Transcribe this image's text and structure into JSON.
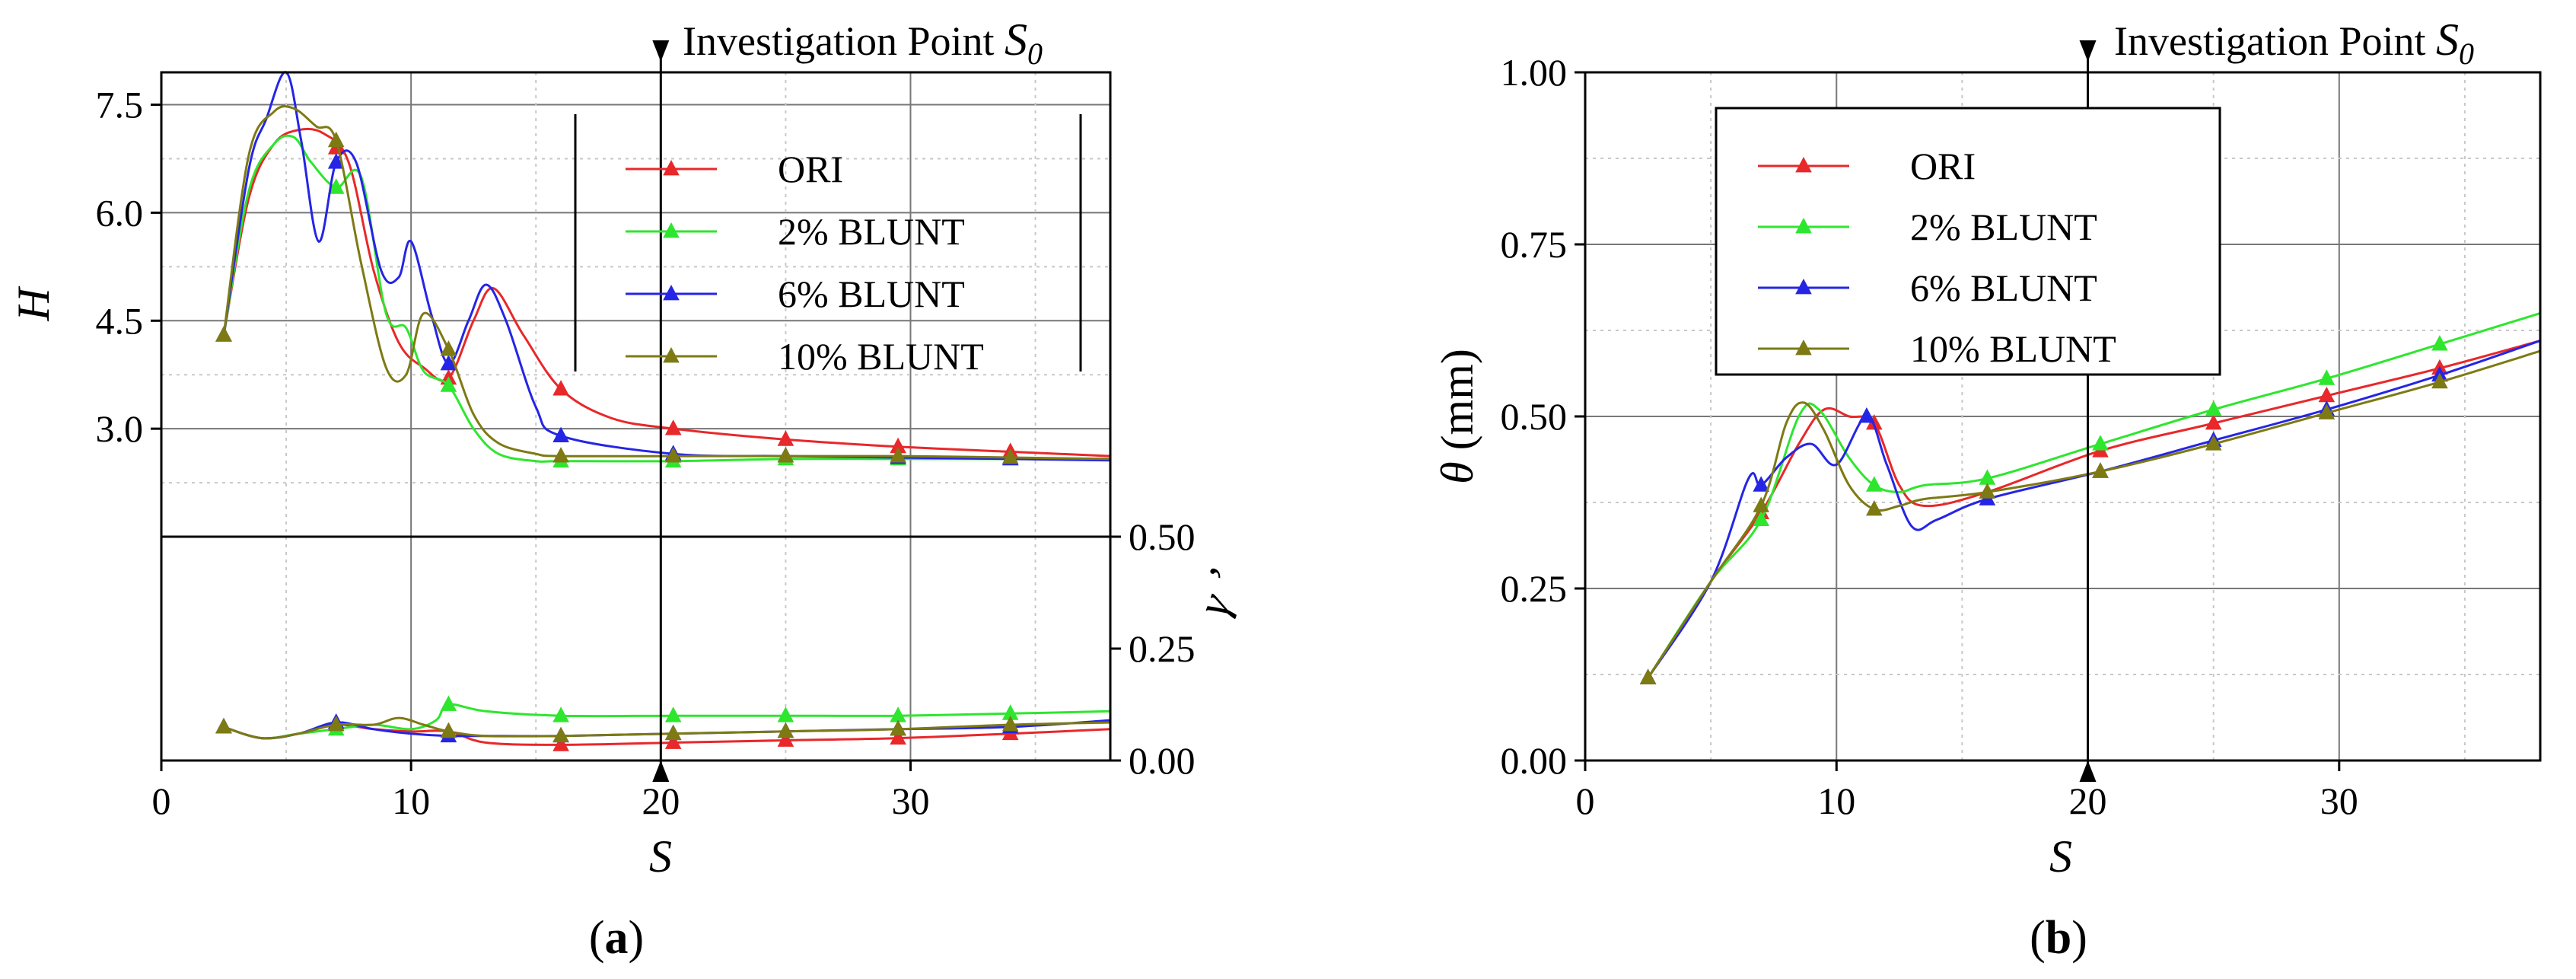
{
  "colors": {
    "ORI": "#e8282a",
    "2% BLUNT": "#2ee62e",
    "6% BLUNT": "#2525e6",
    "10% BLUNT": "#7d7a14"
  },
  "chart_data": [
    {
      "id": "a",
      "type": "line",
      "caption_open": "(",
      "caption_letter": "a",
      "caption_close": ")",
      "annotation_prefix": "Investigation Point ",
      "annotation_symbol": "S",
      "annotation_sub": "0",
      "annotation_x": 20,
      "xlabel": "S",
      "xlim": [
        0,
        38
      ],
      "xticks": [
        0,
        10,
        20,
        30
      ],
      "xtick_labels": [
        "0",
        "10",
        "20",
        "30"
      ],
      "legend": [
        "ORI",
        "2% BLUNT",
        "6% BLUNT",
        "10% BLUNT"
      ],
      "legend_position": "top-right",
      "upper": {
        "ylabel": "H",
        "ylim": [
          1.5,
          7.95
        ],
        "yticks": [
          3.0,
          4.5,
          6.0,
          7.5
        ],
        "ytick_labels": [
          "3.0",
          "4.5",
          "6.0",
          "7.5"
        ],
        "series": [
          {
            "name": "ORI",
            "x": [
              2.5,
              3.5,
              4.5,
              5.5,
              6.5,
              7.5,
              8.5,
              9.5,
              10.5,
              11.5,
              12.5,
              13.3,
              14.5,
              16,
              18,
              20.5,
              25,
              29.5,
              34,
              38
            ],
            "y": [
              4.3,
              6.2,
              6.95,
              7.15,
              7.1,
              6.7,
              5.2,
              4.2,
              3.85,
              3.7,
              4.5,
              4.95,
              4.3,
              3.55,
              3.15,
              3.0,
              2.85,
              2.75,
              2.68,
              2.62
            ],
            "marker_x": [
              2.5,
              7,
              11.5,
              16,
              20.5,
              25,
              29.5,
              34
            ]
          },
          {
            "name": "2% BLUNT",
            "x": [
              2.5,
              3.5,
              4.5,
              5.3,
              6,
              7,
              8,
              9,
              9.8,
              10.5,
              11.5,
              12.5,
              13.5,
              15,
              16,
              20.5,
              25,
              29.5,
              34,
              38
            ],
            "y": [
              4.3,
              6.3,
              6.95,
              7.05,
              6.7,
              6.35,
              6.5,
              4.6,
              4.4,
              3.8,
              3.6,
              3.0,
              2.65,
              2.55,
              2.55,
              2.55,
              2.58,
              2.58,
              2.58,
              2.58
            ],
            "marker_x": [
              2.5,
              7,
              11.5,
              16,
              20.5,
              25,
              29.5,
              34
            ]
          },
          {
            "name": "6% BLUNT",
            "x": [
              2.5,
              3.5,
              4.2,
              5,
              5.6,
              6.3,
              7,
              7.8,
              8.8,
              9.5,
              10.0,
              10.8,
              11.5,
              12.3,
              13.0,
              13.8,
              15,
              16,
              20.5,
              25,
              29.5,
              34,
              38
            ],
            "y": [
              4.3,
              6.6,
              7.3,
              8.0,
              7.0,
              5.6,
              6.7,
              6.7,
              5.2,
              5.1,
              5.6,
              4.6,
              3.9,
              4.5,
              5.0,
              4.5,
              3.3,
              2.9,
              2.65,
              2.62,
              2.6,
              2.58,
              2.56
            ],
            "marker_x": [
              2.5,
              7,
              11.5,
              16,
              20.5,
              25,
              29.5,
              34
            ]
          },
          {
            "name": "10% BLUNT",
            "x": [
              2.5,
              3.5,
              4.5,
              5.3,
              6.2,
              7,
              8,
              9,
              9.8,
              10.5,
              11.5,
              12.5,
              13.5,
              15,
              16,
              20.5,
              25,
              29.5,
              34,
              38
            ],
            "y": [
              4.3,
              6.8,
              7.4,
              7.45,
              7.2,
              7.0,
              5.3,
              3.85,
              3.75,
              4.6,
              4.1,
              3.2,
              2.8,
              2.65,
              2.62,
              2.62,
              2.62,
              2.62,
              2.6,
              2.58
            ],
            "marker_x": [
              2.5,
              7,
              11.5,
              16,
              20.5,
              25,
              29.5,
              34
            ]
          }
        ]
      },
      "lower": {
        "ylabel": "γ ’",
        "ylim": [
          0,
          0.5
        ],
        "yticks": [
          0.0,
          0.25,
          0.5
        ],
        "ytick_labels": [
          "0.00",
          "0.25",
          "0.50"
        ],
        "series": [
          {
            "name": "ORI",
            "x": [
              2.5,
              4,
              5.5,
              7,
              8.5,
              10,
              11.5,
              13,
              16,
              20.5,
              25,
              29.5,
              34,
              38
            ],
            "y": [
              0.075,
              0.05,
              0.06,
              0.08,
              0.07,
              0.065,
              0.065,
              0.04,
              0.035,
              0.04,
              0.045,
              0.05,
              0.06,
              0.07
            ],
            "marker_x": [
              2.5,
              7,
              11.5,
              16,
              20.5,
              25,
              29.5,
              34
            ]
          },
          {
            "name": "2% BLUNT",
            "x": [
              2.5,
              4,
              5.5,
              7,
              8.5,
              10,
              11,
              11.5,
              13,
              16,
              20.5,
              25,
              29.5,
              34,
              38
            ],
            "y": [
              0.075,
              0.05,
              0.06,
              0.07,
              0.08,
              0.07,
              0.09,
              0.125,
              0.11,
              0.1,
              0.1,
              0.1,
              0.1,
              0.105,
              0.11
            ],
            "marker_x": [
              2.5,
              7,
              11.5,
              16,
              20.5,
              25,
              29.5,
              34
            ]
          },
          {
            "name": "6% BLUNT",
            "x": [
              2.5,
              4,
              5.5,
              7,
              8.5,
              10,
              11.5,
              13,
              16,
              20.5,
              25,
              29.5,
              34,
              38
            ],
            "y": [
              0.075,
              0.05,
              0.06,
              0.085,
              0.07,
              0.06,
              0.055,
              0.055,
              0.055,
              0.06,
              0.065,
              0.07,
              0.075,
              0.09
            ],
            "marker_x": [
              2.5,
              7,
              11.5,
              16,
              20.5,
              25,
              29.5,
              34
            ]
          },
          {
            "name": "10% BLUNT",
            "x": [
              2.5,
              4,
              5.5,
              7,
              8.5,
              9.5,
              10.5,
              11.5,
              13,
              16,
              20.5,
              25,
              29.5,
              34,
              38
            ],
            "y": [
              0.075,
              0.05,
              0.06,
              0.08,
              0.08,
              0.095,
              0.08,
              0.065,
              0.055,
              0.055,
              0.06,
              0.065,
              0.07,
              0.08,
              0.085
            ],
            "marker_x": [
              2.5,
              7,
              11.5,
              16,
              20.5,
              25,
              29.5,
              34
            ]
          }
        ]
      }
    },
    {
      "id": "b",
      "type": "line",
      "caption_open": "(",
      "caption_letter": "b",
      "caption_close": ")",
      "annotation_prefix": "Investigation Point ",
      "annotation_symbol": "S",
      "annotation_sub": "0",
      "annotation_x": 20,
      "xlabel": "S",
      "ylabel_symbol": "θ",
      "ylabel_unit": " (mm)",
      "xlim": [
        0,
        38
      ],
      "ylim": [
        0,
        1.0
      ],
      "xticks": [
        0,
        10,
        20,
        30
      ],
      "xtick_labels": [
        "0",
        "10",
        "20",
        "30"
      ],
      "yticks": [
        0.0,
        0.25,
        0.5,
        0.75,
        1.0
      ],
      "ytick_labels": [
        "0.00",
        "0.25",
        "0.50",
        "0.75",
        "1.00"
      ],
      "legend": [
        "ORI",
        "2% BLUNT",
        "6% BLUNT",
        "10% BLUNT"
      ],
      "legend_position": "upper-left",
      "series": [
        {
          "name": "ORI",
          "x": [
            2.5,
            5,
            7,
            8.5,
            9.5,
            10.5,
            11.5,
            12.5,
            13.5,
            16,
            20.5,
            25,
            29.5,
            34,
            38
          ],
          "y": [
            0.12,
            0.26,
            0.36,
            0.46,
            0.51,
            0.5,
            0.49,
            0.4,
            0.37,
            0.39,
            0.45,
            0.49,
            0.53,
            0.57,
            0.61
          ],
          "marker_x": [
            2.5,
            7,
            11.5,
            16,
            20.5,
            25,
            29.5,
            34
          ]
        },
        {
          "name": "2% BLUNT",
          "x": [
            2.5,
            5,
            7,
            8.5,
            9.3,
            10.5,
            11.5,
            12.5,
            13.5,
            16,
            20.5,
            25,
            29.5,
            34,
            38
          ],
          "y": [
            0.12,
            0.26,
            0.35,
            0.5,
            0.51,
            0.44,
            0.4,
            0.39,
            0.4,
            0.41,
            0.46,
            0.51,
            0.555,
            0.605,
            0.65
          ],
          "marker_x": [
            2.5,
            7,
            11.5,
            16,
            20.5,
            25,
            29.5,
            34
          ]
        },
        {
          "name": "6% BLUNT",
          "x": [
            2.5,
            5,
            6.5,
            7,
            8,
            9,
            10,
            11.2,
            12,
            13,
            14,
            16,
            20.5,
            25,
            29.5,
            34,
            38
          ],
          "y": [
            0.12,
            0.26,
            0.41,
            0.4,
            0.44,
            0.46,
            0.43,
            0.5,
            0.43,
            0.34,
            0.35,
            0.38,
            0.42,
            0.465,
            0.51,
            0.56,
            0.61
          ],
          "marker_x": [
            2.5,
            7,
            11.2,
            16,
            20.5,
            25,
            29.5,
            34
          ]
        },
        {
          "name": "10% BLUNT",
          "x": [
            2.5,
            5,
            7,
            8,
            8.7,
            9.5,
            10.5,
            11.5,
            12.5,
            13.5,
            16,
            20.5,
            25,
            29.5,
            34,
            38
          ],
          "y": [
            0.12,
            0.26,
            0.37,
            0.49,
            0.52,
            0.48,
            0.4,
            0.365,
            0.37,
            0.38,
            0.39,
            0.42,
            0.46,
            0.505,
            0.55,
            0.595
          ],
          "marker_x": [
            2.5,
            7,
            11.5,
            16,
            20.5,
            25,
            29.5,
            34
          ]
        }
      ]
    }
  ]
}
